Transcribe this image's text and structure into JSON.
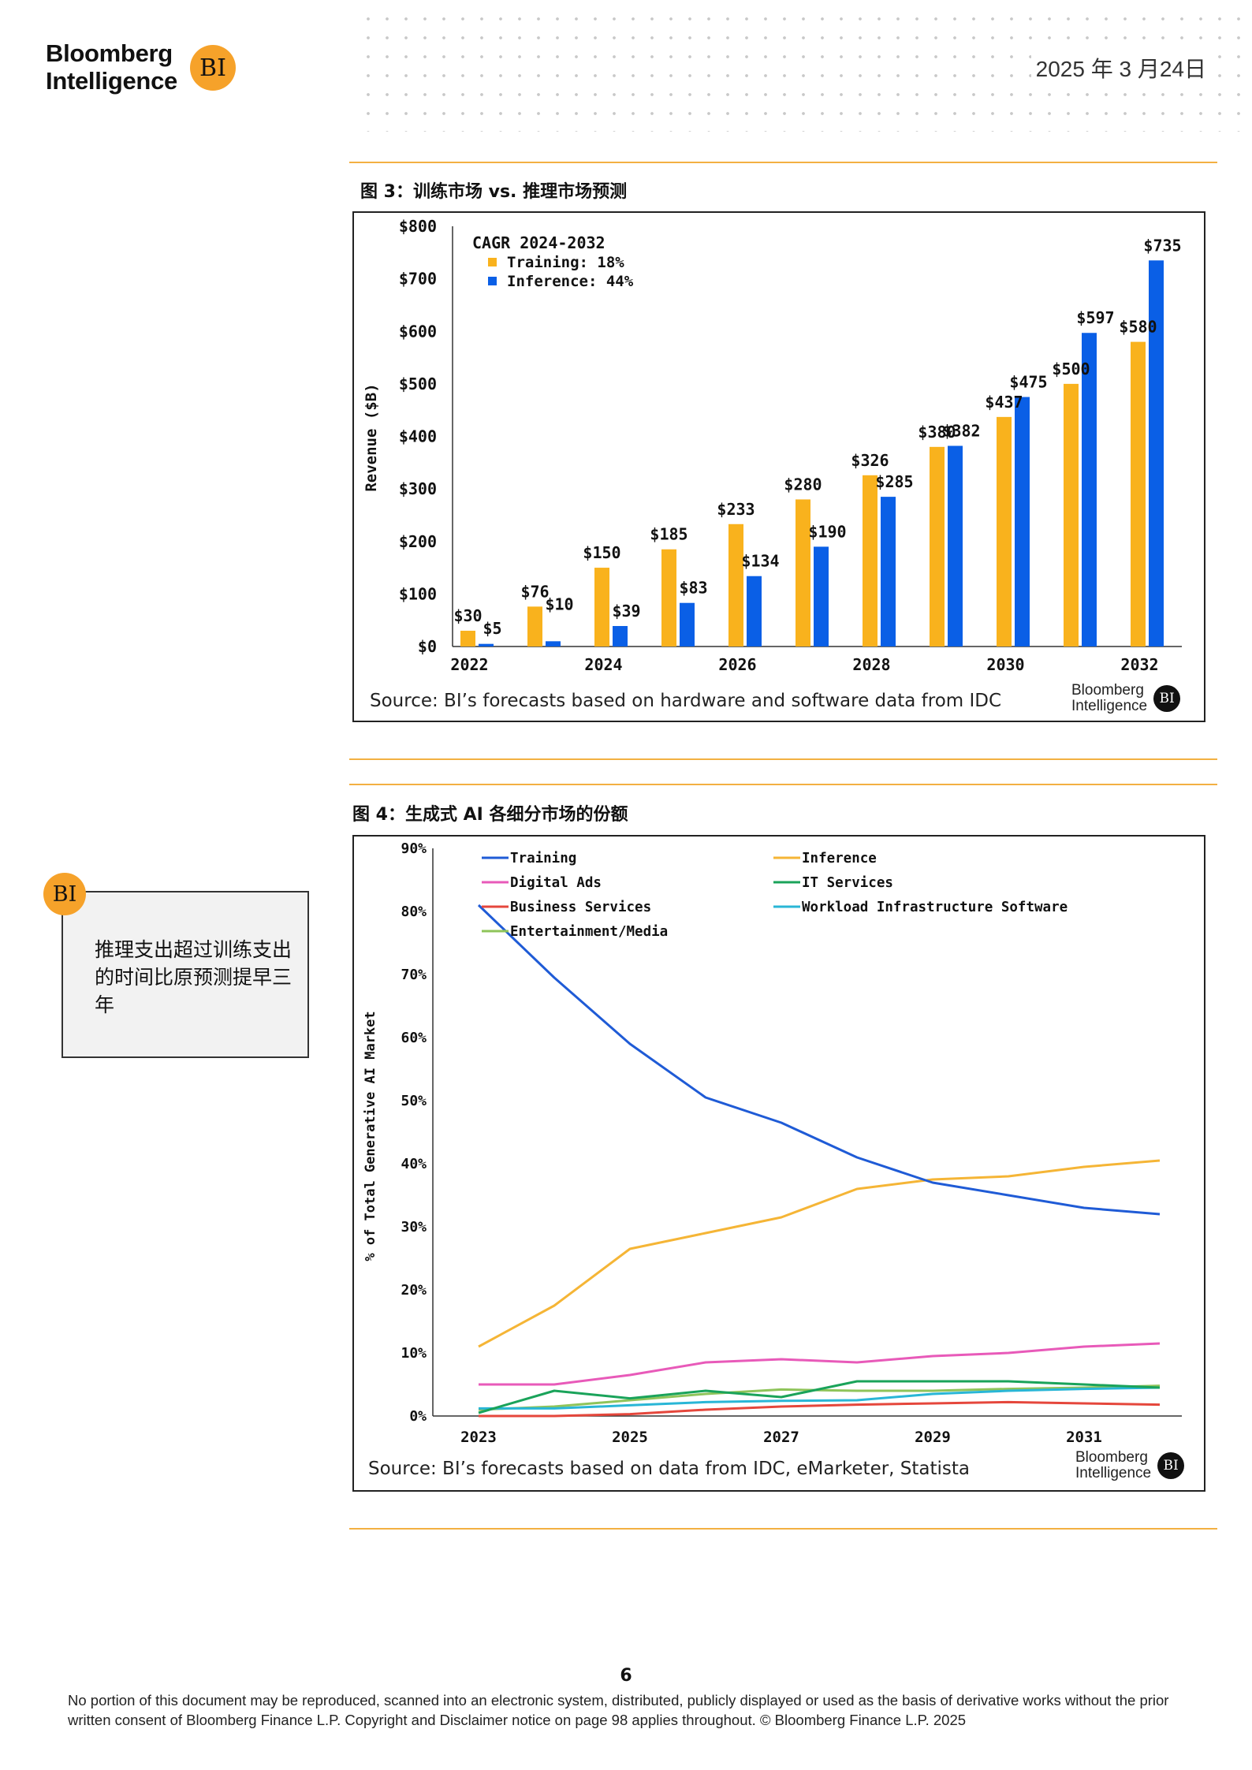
{
  "header": {
    "logo_line1": "Bloomberg",
    "logo_line2": "Intelligence",
    "logo_badge": "BI",
    "date": "2025 年 3 月24日"
  },
  "figure3": {
    "title": "图 3：训练市场 vs. 推理市场预测",
    "source": "Source: BI’s forecasts based on hardware and software data from IDC",
    "brand_line1": "Bloomberg",
    "brand_line2": "Intelligence",
    "brand_badge": "BI"
  },
  "figure4": {
    "title": "图 4：生成式 AI 各细分市场的份额",
    "source": "Source: BI’s forecasts based on data from IDC, eMarketer, Statista",
    "brand_line1": "Bloomberg",
    "brand_line2": "Intelligence",
    "brand_badge": "BI"
  },
  "callout": {
    "badge": "BI",
    "text": "推理支出超过训练支出的时间比原预测提早三年"
  },
  "page_number": "6",
  "footer": "No portion of this document may be reproduced, scanned into an electronic system, distributed, publicly displayed or used as the basis of derivative works without the prior written consent of Bloomberg Finance L.P. Copyright and Disclaimer notice on page 98 applies throughout. © Bloomberg Finance L.P. 2025",
  "colors": {
    "training_bar": "#f9b21d",
    "inference_bar": "#0a5fe6",
    "accent_rule": "#f3b042"
  },
  "chart_data": [
    {
      "type": "bar",
      "title": "图 3：训练市场 vs. 推理市场预测",
      "ylabel": "Revenue ($B)",
      "xlabel": "",
      "ylim": [
        0,
        800
      ],
      "yticks": [
        0,
        100,
        200,
        300,
        400,
        500,
        600,
        700,
        800
      ],
      "ytick_labels": [
        "$0",
        "$100",
        "$200",
        "$300",
        "$400",
        "$500",
        "$600",
        "$700",
        "$800"
      ],
      "categories": [
        "2022",
        "2023",
        "2024",
        "2025",
        "2026",
        "2027",
        "2028",
        "2029",
        "2030",
        "2031",
        "2032"
      ],
      "xtick_labels": [
        "2022",
        "2024",
        "2026",
        "2028",
        "2030",
        "2032"
      ],
      "legend_title": "CAGR 2024-2032",
      "legend_position": "top-left",
      "series": [
        {
          "name": "Training: 18%",
          "color": "#f9b21d",
          "values": [
            30,
            76,
            150,
            185,
            233,
            280,
            326,
            380,
            437,
            500,
            580
          ],
          "labels": [
            "$30",
            "$76",
            "$150",
            "$185",
            "$233",
            "$280",
            "$326",
            "$380",
            "$437",
            "$500",
            "$580"
          ]
        },
        {
          "name": "Inference: 44%",
          "color": "#0a5fe6",
          "values": [
            5,
            10,
            39,
            83,
            134,
            190,
            285,
            382,
            475,
            597,
            735
          ],
          "labels": [
            "$5",
            "$10",
            "$39",
            "$83",
            "$134",
            "$190",
            "$285",
            "$382",
            "$475",
            "$597",
            "$735"
          ]
        }
      ]
    },
    {
      "type": "line",
      "title": "图 4：生成式 AI 各细分市场的份额",
      "ylabel": "% of Total Generative AI Market",
      "xlabel": "",
      "ylim": [
        0,
        90
      ],
      "yticks": [
        0,
        10,
        20,
        30,
        40,
        50,
        60,
        70,
        80,
        90
      ],
      "ytick_labels": [
        "0%",
        "10%",
        "20%",
        "30%",
        "40%",
        "50%",
        "60%",
        "70%",
        "80%",
        "90%"
      ],
      "x": [
        2023,
        2024,
        2025,
        2026,
        2027,
        2028,
        2029,
        2030,
        2031,
        2032
      ],
      "xtick_labels": [
        "2023",
        "2025",
        "2027",
        "2029",
        "2031"
      ],
      "legend_position": "top",
      "grid": false,
      "series": [
        {
          "name": "Training",
          "color": "#1f5bd6",
          "values": [
            81,
            69.5,
            59,
            50.5,
            46.5,
            41,
            37,
            35,
            33,
            32
          ]
        },
        {
          "name": "Inference",
          "color": "#f5b536",
          "values": [
            11,
            17.5,
            26.5,
            29,
            31.5,
            36,
            37.5,
            38,
            39.5,
            40.5
          ]
        },
        {
          "name": "Digital Ads",
          "color": "#e85ab9",
          "values": [
            5,
            5,
            6.5,
            8.5,
            9,
            8.5,
            9.5,
            10,
            11,
            11.5
          ]
        },
        {
          "name": "IT Services",
          "color": "#1aa35a",
          "values": [
            0.5,
            4,
            2.8,
            4,
            3,
            5.5,
            5.5,
            5.5,
            5,
            4.5
          ]
        },
        {
          "name": "Business Services",
          "color": "#e5473c",
          "values": [
            0,
            0,
            0.3,
            1,
            1.5,
            1.8,
            2,
            2.2,
            2,
            1.8
          ]
        },
        {
          "name": "Workload Infrastructure Software",
          "color": "#29b6d6",
          "values": [
            1.2,
            1.2,
            1.7,
            2.2,
            2.4,
            2.5,
            3.5,
            4,
            4.3,
            4.5
          ]
        },
        {
          "name": "Entertainment/Media",
          "color": "#8fc45a",
          "values": [
            1,
            1.5,
            2.5,
            3.5,
            4.2,
            4,
            4,
            4.3,
            4.5,
            4.8
          ]
        }
      ]
    }
  ]
}
